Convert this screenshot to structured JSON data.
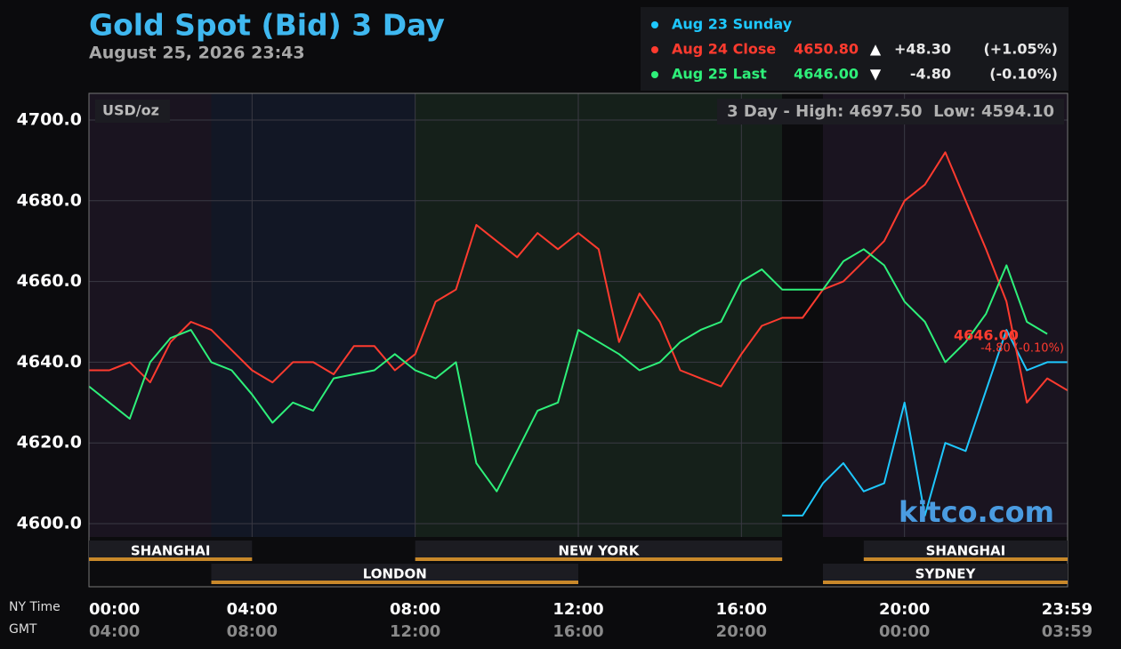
{
  "chart_data": {
    "type": "line",
    "title": "Gold Spot (Bid) 3 Day",
    "subtitle": "August 25, 2026 23:43",
    "unit_label": "USD/oz",
    "stats": "3 Day - High: 4697.50  Low: 4594.10",
    "watermark": "kitco.com",
    "last_annotation": "4646.00",
    "last_change_annotation": "-4.80 (-0.10%)",
    "xlabel": "NY Time",
    "x2label": "GMT",
    "x": [
      0,
      0.5,
      1,
      1.5,
      2,
      2.5,
      3,
      3.5,
      4,
      4.5,
      5,
      5.5,
      6,
      6.5,
      7,
      7.5,
      8,
      8.5,
      9,
      9.5,
      10,
      10.5,
      11,
      11.5,
      12,
      12.5,
      13,
      13.5,
      14,
      14.5,
      15,
      15.5,
      16,
      16.5,
      17,
      17.5,
      18,
      18.5,
      19,
      19.5,
      20,
      20.5,
      21,
      21.5,
      22,
      22.5,
      23,
      23.5,
      24
    ],
    "xlim": [
      0,
      24
    ],
    "xticks": [
      {
        "value": 0,
        "label": "00:00"
      },
      {
        "value": 4,
        "label": "04:00"
      },
      {
        "value": 8,
        "label": "08:00"
      },
      {
        "value": 12,
        "label": "12:00"
      },
      {
        "value": 16,
        "label": "16:00"
      },
      {
        "value": 20,
        "label": "20:00"
      },
      {
        "value": 24,
        "label": "23:59"
      }
    ],
    "x2ticklabels": [
      "04:00",
      "08:00",
      "12:00",
      "16:00",
      "20:00",
      "00:00",
      "03:59"
    ],
    "ylim": [
      4596.7,
      4706.6
    ],
    "yticks": [
      {
        "value": 4600,
        "label": "4600.0"
      },
      {
        "value": 4620,
        "label": "4620.0"
      },
      {
        "value": 4640,
        "label": "4640.0"
      },
      {
        "value": 4660,
        "label": "4660.0"
      },
      {
        "value": 4680,
        "label": "4680.0"
      },
      {
        "value": 4700,
        "label": "4700.0"
      }
    ],
    "grid": true,
    "series": [
      {
        "name": "Aug 23 Sunday",
        "color": "#1ec8ff",
        "values": [
          null,
          null,
          null,
          null,
          null,
          null,
          null,
          null,
          null,
          null,
          null,
          null,
          null,
          null,
          null,
          null,
          null,
          null,
          null,
          null,
          null,
          null,
          null,
          null,
          null,
          null,
          null,
          null,
          null,
          null,
          null,
          null,
          null,
          null,
          4602,
          4602,
          4610,
          4615,
          4608,
          4610,
          4630,
          4602,
          4620,
          4618,
          4633,
          4648,
          4638,
          4640,
          4640
        ]
      },
      {
        "name": "Aug 24 Close",
        "color": "#ff3b2f",
        "last": "4650.80",
        "arrow": "▲",
        "change": "+48.30",
        "percent": "(+1.05%)",
        "values": [
          4638,
          4638,
          4640,
          4635,
          4645,
          4650,
          4648,
          4643,
          4638,
          4635,
          4640,
          4640,
          4637,
          4644,
          4644,
          4638,
          4642,
          4655,
          4658,
          4674,
          4670,
          4666,
          4672,
          4668,
          4672,
          4668,
          4645,
          4657,
          4650,
          4638,
          4636,
          4634,
          4642,
          4649,
          4651,
          4651,
          4658,
          4660,
          4665,
          4670,
          4680,
          4684,
          4692,
          4680,
          4668,
          4655,
          4630,
          4636,
          4633
        ]
      },
      {
        "name": "Aug 25 Last",
        "color": "#2ef07a",
        "last": "4646.00",
        "arrow": "▼",
        "change": "-4.80",
        "percent": "(-0.10%)",
        "values": [
          4634,
          4630,
          4626,
          4640,
          4646,
          4648,
          4640,
          4638,
          4632,
          4625,
          4630,
          4628,
          4636,
          4637,
          4638,
          4642,
          4638,
          4636,
          4640,
          4615,
          4608,
          4618,
          4628,
          4630,
          4648,
          4645,
          4642,
          4638,
          4640,
          4645,
          4648,
          4650,
          4660,
          4663,
          4658,
          4658,
          4658,
          4665,
          4668,
          4664,
          4655,
          4650,
          4640,
          4645,
          4652,
          4664,
          4650,
          4647,
          null
        ]
      }
    ],
    "bands": [
      {
        "start": 0,
        "end": 3,
        "color": "#1a1420"
      },
      {
        "start": 3,
        "end": 8,
        "color": "#121725"
      },
      {
        "start": 8,
        "end": 17,
        "color": "#15201a"
      },
      {
        "start": 17,
        "end": 18,
        "color": "#0c0c0e"
      },
      {
        "start": 18,
        "end": 24,
        "color": "#1a1420"
      }
    ],
    "session_color": "#c8882a",
    "sessions": [
      {
        "name": "SHANGHAI",
        "start": 0,
        "end": 4,
        "row": 1
      },
      {
        "name": "NEW YORK",
        "start": 8,
        "end": 17,
        "row": 1
      },
      {
        "name": "SHANGHAI",
        "start": 19,
        "end": 24,
        "row": 1
      },
      {
        "name": "LONDON",
        "start": 3,
        "end": 12,
        "row": 2
      },
      {
        "name": "SYDNEY",
        "start": 18,
        "end": 24,
        "row": 2
      }
    ]
  }
}
